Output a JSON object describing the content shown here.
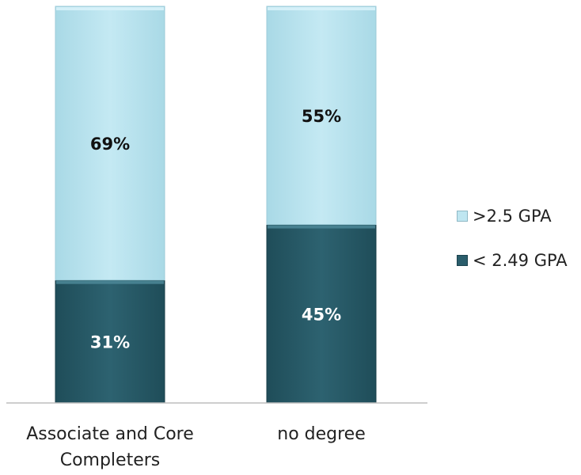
{
  "chart_data": {
    "type": "bar",
    "stacked": true,
    "categories": [
      "Associate and Core Completers",
      "no degree"
    ],
    "category_labels": [
      [
        "Associate and Core",
        "Completers"
      ],
      [
        "no degree"
      ]
    ],
    "series": [
      {
        "name": "< 2.49 GPA",
        "values": [
          31,
          45
        ],
        "labels": [
          "31%",
          "45%"
        ],
        "color": "#2a5d6b"
      },
      {
        "name": ">2.5 GPA",
        "values": [
          69,
          55
        ],
        "labels": [
          "69%",
          "55%"
        ],
        "color": "#bfe6f1"
      }
    ],
    "ylim": [
      0,
      100
    ],
    "unit": "%",
    "grid": false,
    "legend_position": "right"
  }
}
